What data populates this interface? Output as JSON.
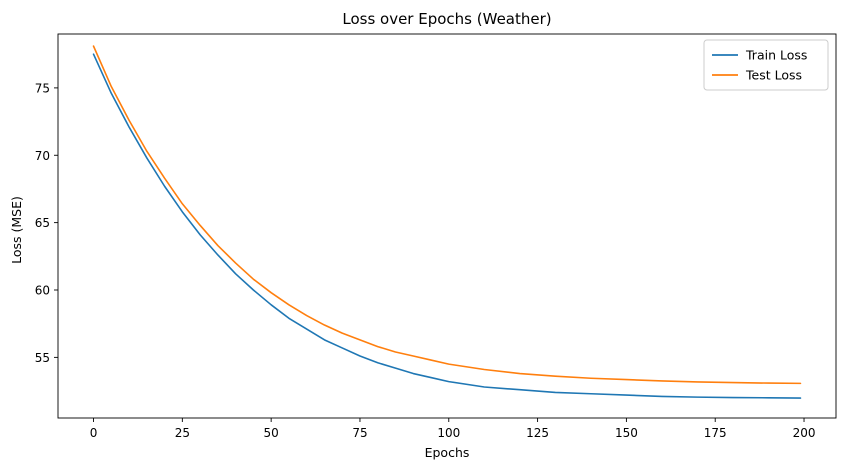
{
  "chart_data": {
    "type": "line",
    "title": "Loss over Epochs (Weather)",
    "xlabel": "Epochs",
    "ylabel": "Loss (MSE)",
    "xlim": [
      -10,
      209
    ],
    "ylim": [
      50.5,
      79.0
    ],
    "xticks": [
      0,
      25,
      50,
      75,
      100,
      125,
      150,
      175,
      200
    ],
    "yticks": [
      55,
      60,
      65,
      70,
      75
    ],
    "grid": false,
    "legend": "top-right",
    "series": [
      {
        "name": "Train Loss",
        "color": "#1f77b4",
        "x": [
          0,
          5,
          10,
          15,
          20,
          25,
          30,
          35,
          40,
          45,
          50,
          55,
          60,
          65,
          70,
          75,
          80,
          85,
          90,
          95,
          100,
          110,
          120,
          130,
          140,
          150,
          160,
          170,
          180,
          190,
          199
        ],
        "y": [
          77.5,
          74.6,
          72.1,
          69.8,
          67.7,
          65.8,
          64.1,
          62.6,
          61.2,
          60.0,
          58.9,
          57.9,
          57.1,
          56.3,
          55.7,
          55.1,
          54.6,
          54.2,
          53.8,
          53.5,
          53.2,
          52.8,
          52.6,
          52.4,
          52.3,
          52.2,
          52.1,
          52.05,
          52.02,
          52.0,
          51.98
        ]
      },
      {
        "name": "Test Loss",
        "color": "#ff7f0e",
        "x": [
          0,
          5,
          10,
          15,
          20,
          25,
          30,
          35,
          40,
          45,
          50,
          55,
          60,
          65,
          70,
          75,
          80,
          85,
          90,
          95,
          100,
          110,
          120,
          130,
          140,
          150,
          160,
          170,
          180,
          190,
          199
        ],
        "y": [
          78.1,
          75.1,
          72.6,
          70.3,
          68.3,
          66.4,
          64.8,
          63.3,
          62.0,
          60.8,
          59.8,
          58.9,
          58.1,
          57.4,
          56.8,
          56.3,
          55.8,
          55.4,
          55.1,
          54.8,
          54.5,
          54.1,
          53.8,
          53.6,
          53.45,
          53.35,
          53.25,
          53.18,
          53.13,
          53.09,
          53.07
        ]
      }
    ]
  }
}
